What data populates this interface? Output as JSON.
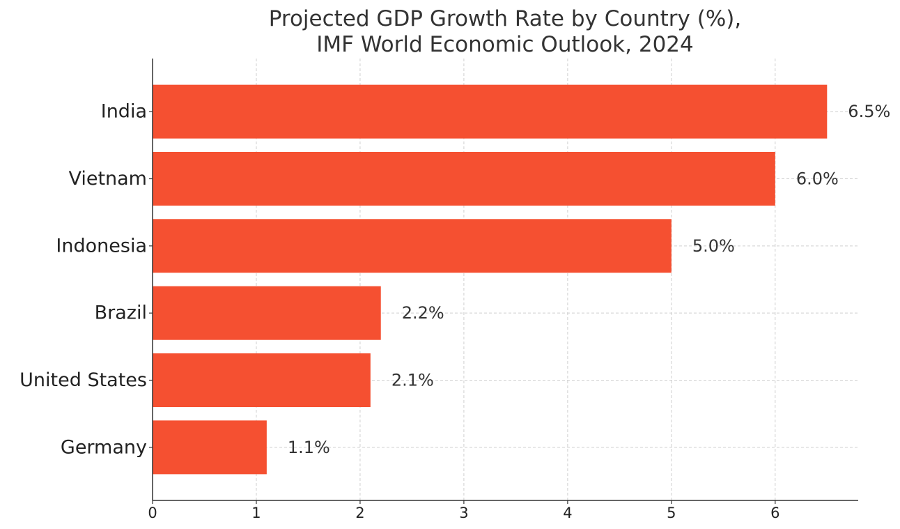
{
  "chart_data": {
    "type": "bar",
    "orientation": "horizontal",
    "title_lines": [
      "Projected GDP Growth Rate by Country (%),",
      "IMF World Economic Outlook, 2024"
    ],
    "categories": [
      "India",
      "Vietnam",
      "Indonesia",
      "Brazil",
      "United States",
      "Germany"
    ],
    "values": [
      6.5,
      6.0,
      5.0,
      2.2,
      2.1,
      1.1
    ],
    "value_labels": [
      "6.5%",
      "6.0%",
      "5.0%",
      "2.2%",
      "2.1%",
      "1.1%"
    ],
    "x_ticks": [
      0,
      1,
      2,
      3,
      4,
      5,
      6
    ],
    "x_tick_labels": [
      "0",
      "1",
      "2",
      "3",
      "4",
      "5",
      "6"
    ],
    "xlim": [
      0,
      6.8
    ],
    "xlabel": "",
    "ylabel": "",
    "grid": true,
    "bar_color": "#F55031",
    "text_color": "#333333"
  }
}
